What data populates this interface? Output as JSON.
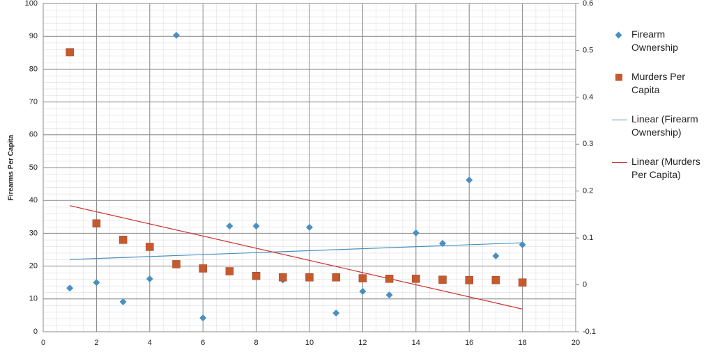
{
  "chart_data": {
    "type": "scatter",
    "y_label": "Firearms Per Capita",
    "x": [
      1,
      2,
      3,
      4,
      5,
      6,
      7,
      8,
      9,
      10,
      11,
      12,
      13,
      14,
      15,
      16,
      17,
      18
    ],
    "series": [
      {
        "name": "Firearm Ownership",
        "color": "#4a8fc0",
        "marker": "diamond",
        "axis": "y",
        "values": [
          13.3,
          15.0,
          9.1,
          16.1,
          90.3,
          4.2,
          32.2,
          32.2,
          15.8,
          31.8,
          5.7,
          12.3,
          11.2,
          30.1,
          26.9,
          46.2,
          23.1,
          26.5
        ],
        "trendline": {
          "name": "Linear (Firearm Ownership)",
          "color": "#4a8fc0"
        }
      },
      {
        "name": "Murders Per Capita",
        "color": "#c55a2e",
        "marker": "square",
        "axis": "y2",
        "values": [
          0.496,
          0.131,
          0.096,
          0.081,
          0.044,
          0.035,
          0.029,
          0.019,
          0.016,
          0.016,
          0.016,
          0.014,
          0.013,
          0.013,
          0.011,
          0.01,
          0.01,
          0.005
        ],
        "trendline": {
          "name": "Linear (Murders Per Capita)",
          "color": "#d03030"
        }
      }
    ],
    "xlim": [
      0,
      20
    ],
    "xticks": [
      0,
      2,
      4,
      6,
      8,
      10,
      12,
      14,
      16,
      18,
      20
    ],
    "ylim": [
      0,
      100
    ],
    "yticks": [
      0,
      10,
      20,
      30,
      40,
      50,
      60,
      70,
      80,
      90,
      100
    ],
    "y2lim": [
      -0.1,
      0.6
    ],
    "y2ticks": [
      -0.1,
      0,
      0.1,
      0.2,
      0.3,
      0.4,
      0.5,
      0.6
    ],
    "grid": true
  }
}
